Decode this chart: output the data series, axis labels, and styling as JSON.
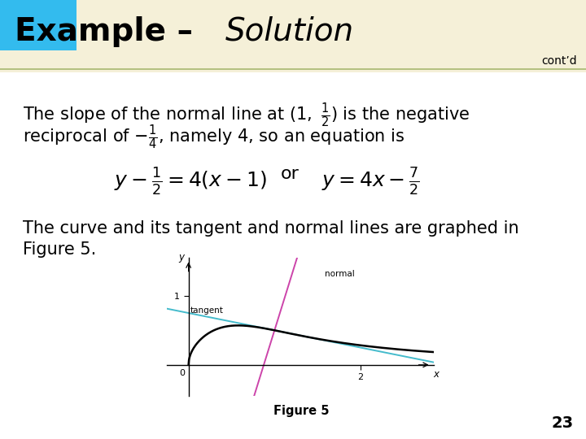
{
  "bg_color": "#ffffff",
  "header_bg": "#f5f0d8",
  "blue_box_color": "#33bbee",
  "title_plain": "Example – ",
  "title_italic": "Solution",
  "contd": "cont’d",
  "page_number": "23",
  "body_fs": 15,
  "eq_fs": 16,
  "graph_xlim": [
    -0.25,
    2.85
  ],
  "graph_ylim": [
    -0.45,
    1.55
  ],
  "curve_color": "#000000",
  "tangent_color": "#44bbcc",
  "normal_color": "#cc44aa",
  "figure_label": "Figure 5"
}
